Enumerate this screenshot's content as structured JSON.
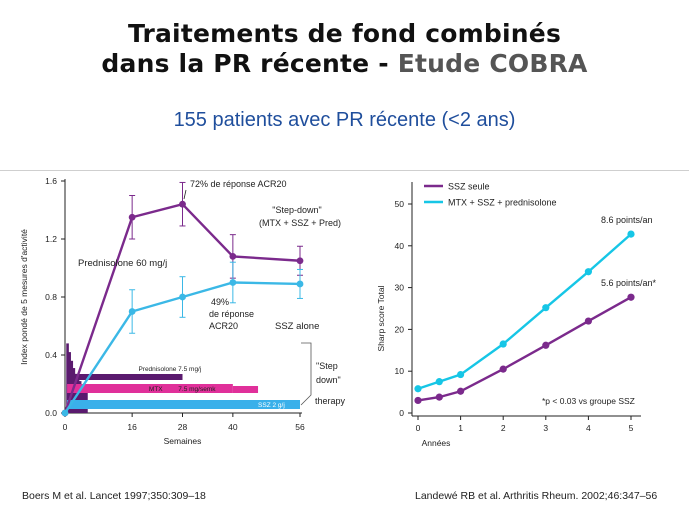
{
  "title_line1": "Traitements de fond combinés",
  "title_line2_prefix": "dans la PR récente - ",
  "title_line2_highlight": "Etude COBRA",
  "subtitle": "155 patients avec PR récente (<2 ans)",
  "colors": {
    "purple": "#7b2a8c",
    "cyan": "#3bb8e6",
    "pink": "#e0309a",
    "dark_purple": "#5a1a6e",
    "light_blue": "#3ab0ea"
  },
  "chart_data": [
    {
      "type": "line",
      "ylabel": "Index pondé de 5 mesures d'activité",
      "xlabel": "Semaines",
      "x_ticks": [
        0,
        16,
        28,
        40,
        56
      ],
      "y_ticks": [
        "0.0",
        "0.4",
        "0.8",
        "1.2",
        "1.6"
      ],
      "xlim": [
        0,
        56
      ],
      "ylim": [
        0,
        1.6
      ],
      "series": [
        {
          "color": "#7b2a8c",
          "x": [
            0,
            16,
            28,
            40,
            56
          ],
          "y": [
            0.0,
            1.35,
            1.44,
            1.08,
            1.05
          ],
          "err": [
            0,
            0.15,
            0.15,
            0.15,
            0.1
          ]
        },
        {
          "color": "#3bb8e6",
          "x": [
            0,
            16,
            28,
            40,
            56
          ],
          "y": [
            0.0,
            0.7,
            0.8,
            0.9,
            0.89
          ],
          "err": [
            0,
            0.15,
            0.14,
            0.14,
            0.1
          ]
        }
      ],
      "annotations": {
        "acr72": "72%  de réponse ACR20",
        "stepdown1": "\"Step-down\"",
        "stepdown2": "(MTX + SSZ + Pred)",
        "prednisolone60": "Prednisolone  60 mg/j",
        "acr49_1": "49%",
        "acr49_2": "de réponse",
        "acr49_3": "ACR20",
        "ssz_alone": "SSZ alone",
        "therapy1": "\"Step",
        "therapy2": "down\"",
        "therapy3": "therapy"
      },
      "bars": {
        "prednisolone75": "Prednisolone 7.5 mg/j",
        "mtx": "MTX",
        "mtx_dose": "7.5 mg/semk",
        "ssz": "SSZ 2 g/j"
      }
    },
    {
      "type": "line",
      "ylabel": "Sharp score Total",
      "xlabel": "Années",
      "x_ticks": [
        0,
        1,
        2,
        3,
        4,
        5
      ],
      "y_ticks": [
        0,
        10,
        20,
        30,
        40,
        50
      ],
      "xlim": [
        0,
        5
      ],
      "ylim": [
        0,
        50
      ],
      "legend_position": "top-left",
      "series": [
        {
          "name": "SSZ seule",
          "color": "#7b2a8c",
          "x": [
            0,
            0.5,
            1,
            2,
            3,
            4,
            5
          ],
          "y": [
            3,
            3.8,
            5.2,
            10.5,
            16.2,
            22,
            27.7
          ]
        },
        {
          "name": "MTX + SSZ + prednisolone",
          "color": "#16c6e6",
          "x": [
            0,
            0.5,
            1,
            2,
            3,
            4,
            5
          ],
          "y": [
            5.8,
            7.5,
            9.2,
            16.5,
            25.2,
            33.8,
            42.8
          ]
        }
      ],
      "annotations": {
        "rate_combo": "8.6 points/an",
        "rate_ssz": "5.6 points/an*",
        "footnote": "*p < 0.03 vs groupe SSZ"
      }
    }
  ],
  "ref_left": "Boers M et al. Lancet 1997;350:309–18",
  "ref_right": "Landewé RB et al. Arthritis Rheum. 2002;46:347–56"
}
